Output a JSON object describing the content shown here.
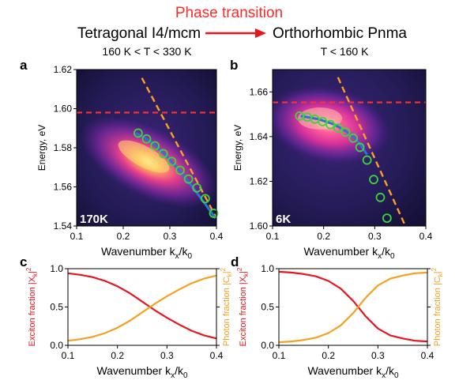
{
  "header": {
    "phase_title": "Phase transition",
    "left_phase": "Tetragonal I4/mcm",
    "left_range": "160 K < T < 330 K",
    "right_phase": "Orthorhombic Pnma",
    "right_range": "T < 160 K"
  },
  "colors": {
    "title_red": "#ff2a2a",
    "arrow_red": "#e8141e",
    "exciton": "#e8141e",
    "photon": "#f5a020",
    "exciton_level": "#ff3030",
    "photon_line": "#ffa020",
    "fit_line": "#2a74d6",
    "marker": "#3ad63a"
  },
  "chart_data": [
    {
      "panel": "a",
      "type": "heatmap",
      "xlabel": "Wavenumber k",
      "xlabel_sub": "x",
      "xlabel_mid": "/k",
      "xlabel_sub2": "0",
      "ylabel": "Energy, eV",
      "xlim": [
        0.1,
        0.4
      ],
      "ylim": [
        1.54,
        1.62
      ],
      "xticks": [
        "0.1",
        "0.2",
        "0.3",
        "0.4"
      ],
      "yticks": [
        "1.54",
        "1.56",
        "1.58",
        "1.60",
        "1.62"
      ],
      "temperature_label": "170K",
      "exciton_level": 1.598,
      "photon_line": [
        [
          0.24,
          1.6157
        ],
        [
          0.398,
          1.545
        ]
      ],
      "fit_line": [
        [
          0.227,
          1.5875
        ],
        [
          0.26,
          1.583
        ],
        [
          0.29,
          1.5765
        ],
        [
          0.32,
          1.5685
        ],
        [
          0.35,
          1.5595
        ],
        [
          0.375,
          1.5515
        ],
        [
          0.398,
          1.544
        ]
      ],
      "markers": {
        "x": [
          0.232,
          0.25,
          0.268,
          0.286,
          0.304,
          0.322,
          0.34,
          0.358,
          0.376,
          0.394
        ],
        "y": [
          1.5875,
          1.5845,
          1.581,
          1.577,
          1.573,
          1.5685,
          1.564,
          1.5595,
          1.554,
          1.5465
        ]
      }
    },
    {
      "panel": "b",
      "type": "heatmap",
      "xlabel": "Wavenumber k",
      "xlabel_sub": "x",
      "xlabel_mid": "/k",
      "xlabel_sub2": "0",
      "ylabel": "Energy, eV",
      "xlim": [
        0.1,
        0.4
      ],
      "ylim": [
        1.6,
        1.67
      ],
      "xticks": [
        "0.1",
        "0.2",
        "0.3",
        "0.4"
      ],
      "yticks": [
        "1.60",
        "1.62",
        "1.64",
        "1.66"
      ],
      "temperature_label": "6K",
      "exciton_level": 1.6553,
      "photon_line": [
        [
          0.228,
          1.6665
        ],
        [
          0.36,
          1.6
        ]
      ],
      "fit_line": [
        [
          0.155,
          1.6492
        ],
        [
          0.19,
          1.6478
        ],
        [
          0.22,
          1.6455
        ],
        [
          0.245,
          1.6422
        ],
        [
          0.265,
          1.6385
        ],
        [
          0.285,
          1.632
        ]
      ],
      "markers": {
        "x": [
          0.153,
          0.168,
          0.183,
          0.198,
          0.213,
          0.228,
          0.243,
          0.258,
          0.271,
          0.285,
          0.298,
          0.311,
          0.324
        ],
        "y": [
          1.6492,
          1.6487,
          1.6478,
          1.6467,
          1.6454,
          1.6438,
          1.642,
          1.6393,
          1.6352,
          1.6295,
          1.6208,
          1.6128,
          1.6035
        ]
      }
    },
    {
      "panel": "c",
      "type": "line",
      "xlabel": "Wavenumber k",
      "xlabel_sub": "x",
      "xlabel_mid": "/k",
      "xlabel_sub2": "0",
      "ylabel_left": "Exciton fraction |X",
      "ylabel_left_sub": "k",
      "ylabel_left_sup": "2",
      "ylabel_right": "Photon fraction |C",
      "ylabel_right_sub": "k",
      "ylabel_right_sup": "2",
      "xlim": [
        0.1,
        0.4
      ],
      "ylim": [
        0,
        1
      ],
      "xticks": [
        "0.1",
        "0.2",
        "0.3",
        "0.4"
      ],
      "yticks": [
        "0.0",
        "0.5",
        "1.0"
      ],
      "x": [
        0.1,
        0.125,
        0.15,
        0.175,
        0.2,
        0.225,
        0.25,
        0.275,
        0.3,
        0.325,
        0.35,
        0.375,
        0.4
      ],
      "series": [
        {
          "values": [
            0.94,
            0.92,
            0.89,
            0.84,
            0.77,
            0.68,
            0.57,
            0.46,
            0.36,
            0.27,
            0.19,
            0.13,
            0.09
          ]
        },
        {
          "values": [
            0.06,
            0.08,
            0.11,
            0.16,
            0.23,
            0.32,
            0.43,
            0.54,
            0.64,
            0.73,
            0.81,
            0.87,
            0.91
          ]
        }
      ]
    },
    {
      "panel": "d",
      "type": "line",
      "xlabel": "Wavenumber k",
      "xlabel_sub": "x",
      "xlabel_mid": "/k",
      "xlabel_sub2": "0",
      "ylabel_left": "Exciton fraction |X",
      "ylabel_left_sub": "k",
      "ylabel_left_sup": "2",
      "ylabel_right": "Photon fraction |C",
      "ylabel_right_sub": "k",
      "ylabel_right_sup": "2",
      "xlim": [
        0.1,
        0.4
      ],
      "ylim": [
        0,
        1
      ],
      "xticks": [
        "0.1",
        "0.2",
        "0.3",
        "0.4"
      ],
      "yticks": [
        "0.0",
        "0.5",
        "1.0"
      ],
      "x": [
        0.1,
        0.125,
        0.15,
        0.175,
        0.2,
        0.225,
        0.25,
        0.275,
        0.3,
        0.325,
        0.35,
        0.375,
        0.4
      ],
      "series": [
        {
          "values": [
            0.96,
            0.95,
            0.93,
            0.9,
            0.84,
            0.74,
            0.58,
            0.38,
            0.22,
            0.13,
            0.09,
            0.06,
            0.05
          ]
        },
        {
          "values": [
            0.04,
            0.05,
            0.07,
            0.1,
            0.16,
            0.26,
            0.42,
            0.62,
            0.78,
            0.87,
            0.91,
            0.94,
            0.95
          ]
        }
      ]
    }
  ]
}
